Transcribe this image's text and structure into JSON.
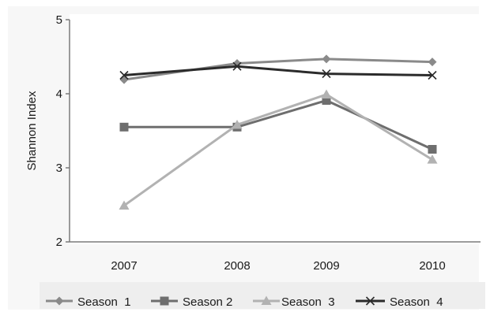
{
  "chart_data": {
    "type": "line",
    "title": "",
    "xlabel": "",
    "ylabel": "Shannon Index",
    "x": [
      "2007",
      "2008",
      "2009",
      "2010"
    ],
    "ylim": [
      2,
      5
    ],
    "yticks": [
      "2",
      "3",
      "4",
      "5"
    ],
    "grid": false,
    "legend_position": "bottom",
    "series": [
      {
        "name": "Season  1",
        "values": [
          4.19,
          4.41,
          4.47,
          4.43
        ],
        "marker": "diamond",
        "color": "#8a8a8a"
      },
      {
        "name": "Season 2",
        "values": [
          3.55,
          3.55,
          3.91,
          3.25
        ],
        "marker": "square",
        "color": "#6e6e6e"
      },
      {
        "name": "Season  3",
        "values": [
          2.49,
          3.58,
          3.99,
          3.11
        ],
        "marker": "triangle",
        "color": "#b2b2b2"
      },
      {
        "name": "Season  4",
        "values": [
          4.25,
          4.37,
          4.27,
          4.25
        ],
        "marker": "x",
        "color": "#2b2b2b"
      }
    ]
  }
}
